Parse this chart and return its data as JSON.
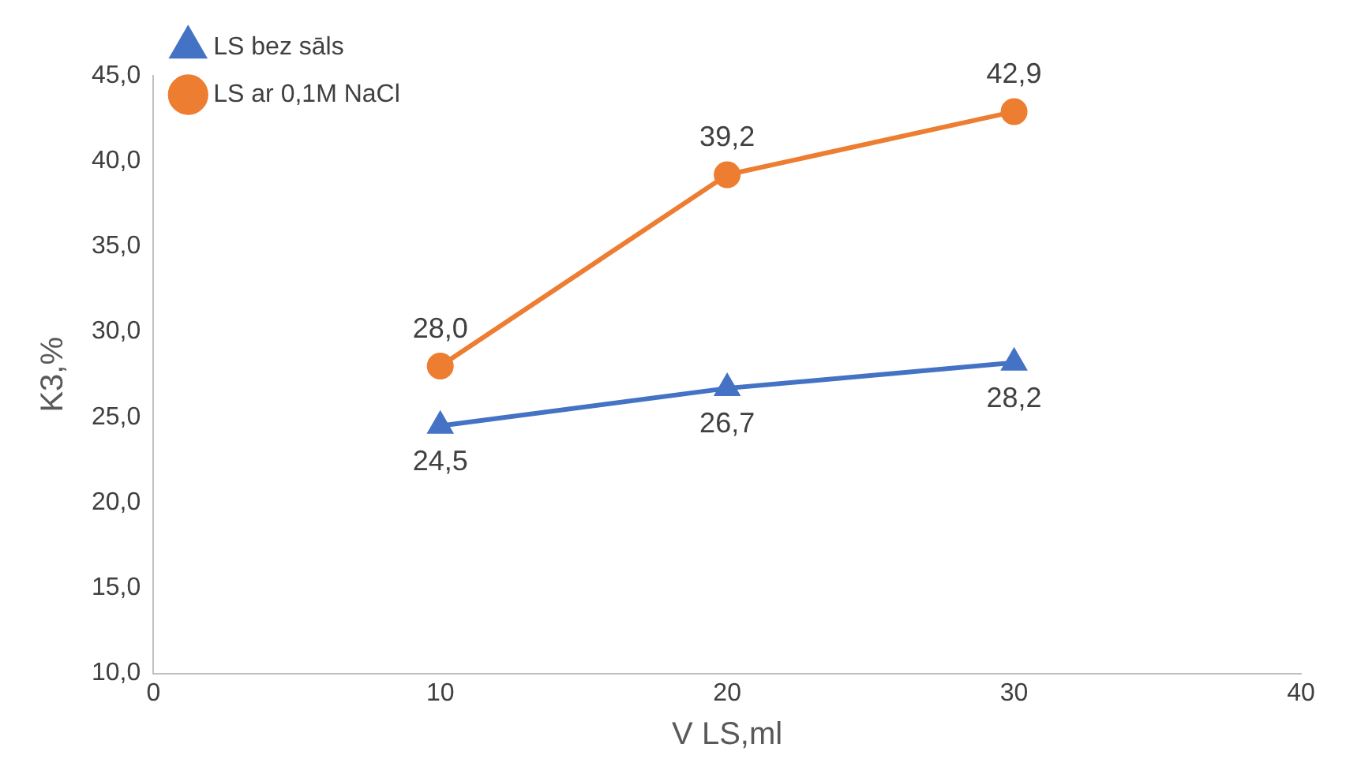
{
  "chart_data": {
    "type": "line",
    "xlabel": "V LS,ml",
    "ylabel": "K3,%",
    "x": [
      10,
      20,
      30
    ],
    "xlim": [
      0,
      40
    ],
    "xticks": [
      0,
      10,
      20,
      30,
      40
    ],
    "ylim": [
      10,
      45
    ],
    "yticks": [
      {
        "value": 10,
        "label": "10,0"
      },
      {
        "value": 15,
        "label": "15,0"
      },
      {
        "value": 20,
        "label": "20,0"
      },
      {
        "value": 25,
        "label": "25,0"
      },
      {
        "value": 30,
        "label": "30,0"
      },
      {
        "value": 35,
        "label": "35,0"
      },
      {
        "value": 40,
        "label": "40,0"
      },
      {
        "value": 45,
        "label": "45,0"
      }
    ],
    "series": [
      {
        "name": "LS bez sāls",
        "color": "#4472c4",
        "marker": "triangle",
        "values": [
          24.5,
          26.7,
          28.2
        ],
        "value_labels": [
          "24,5",
          "26,7",
          "28,2"
        ]
      },
      {
        "name": "LS ar 0,1M NaCl",
        "color": "#ed7d31",
        "marker": "circle",
        "values": [
          28.0,
          39.2,
          42.9
        ],
        "value_labels": [
          "28,0",
          "39,2",
          "42,9"
        ]
      }
    ],
    "grid": false,
    "legend": "top left",
    "line_style": "solid"
  }
}
